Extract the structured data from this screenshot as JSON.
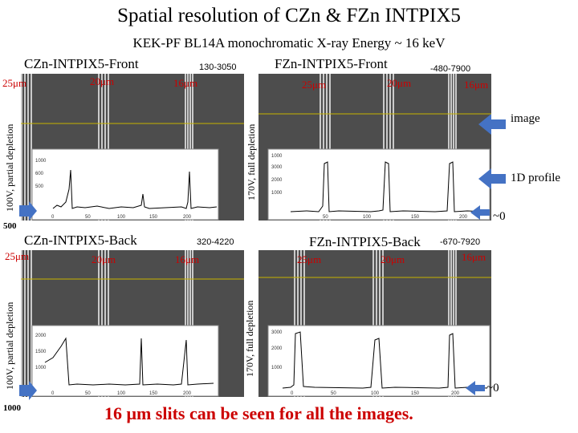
{
  "title": "Spatial resolution of CZn & FZn INTPIX5",
  "subtitle": "KEK-PF BL14A monochromatic X-ray Energy ~ 16 keV",
  "panels": {
    "tl": {
      "name": "CZn-INTPIX5-Front",
      "range": "130-3050",
      "side_label": "100V, partial depletion",
      "slits": [
        "25μm",
        "20μm",
        "16μm"
      ]
    },
    "tr": {
      "name": "FZn-INTPIX5-Front",
      "range": "-480-7900",
      "side_label": "170V, full depletion",
      "slits": [
        "25μm",
        "20μm",
        "16μm"
      ]
    },
    "bl": {
      "name": "CZn-INTPIX5-Back",
      "range": "320-4220",
      "side_label": "100V, partial depletion",
      "slits": [
        "25μm",
        "20μm",
        "16μm"
      ]
    },
    "br": {
      "name": "FZn-INTPIX5-Back",
      "range": "-670-7920",
      "side_label": "170V, full depletion",
      "slits": [
        "25μm",
        "20μm",
        "16μm"
      ]
    }
  },
  "annotations": {
    "image": "image",
    "profile": "1D profile",
    "zero_top": "~0",
    "zero_bottom": "~0"
  },
  "scale_labels": {
    "top": "500",
    "bottom": "1000"
  },
  "plot_ticks": {
    "tl_y": [
      "1000",
      "600",
      "500"
    ],
    "tl_x": [
      "0",
      "50",
      "100",
      "150",
      "200"
    ],
    "tr_y": [
      "1000",
      "3000",
      "2000",
      "1000"
    ],
    "tr_x": [
      "50",
      "100",
      "150",
      "200"
    ],
    "bl_y": [
      "2000",
      "1500",
      "1000"
    ],
    "bl_x": [
      "0",
      "50",
      "100",
      "150",
      "200"
    ],
    "br_y": [
      "3000",
      "2000",
      "1000"
    ],
    "br_x": [
      "0",
      "50",
      "100",
      "150",
      "200"
    ]
  },
  "conclusion": "16 μm slits can be seen for all the images.",
  "colors": {
    "slit_label": "#cc0000",
    "arrow": "#4472c4",
    "line": "#c8b400",
    "panel": "#4d4d4d",
    "conclusion": "#cc0000"
  }
}
